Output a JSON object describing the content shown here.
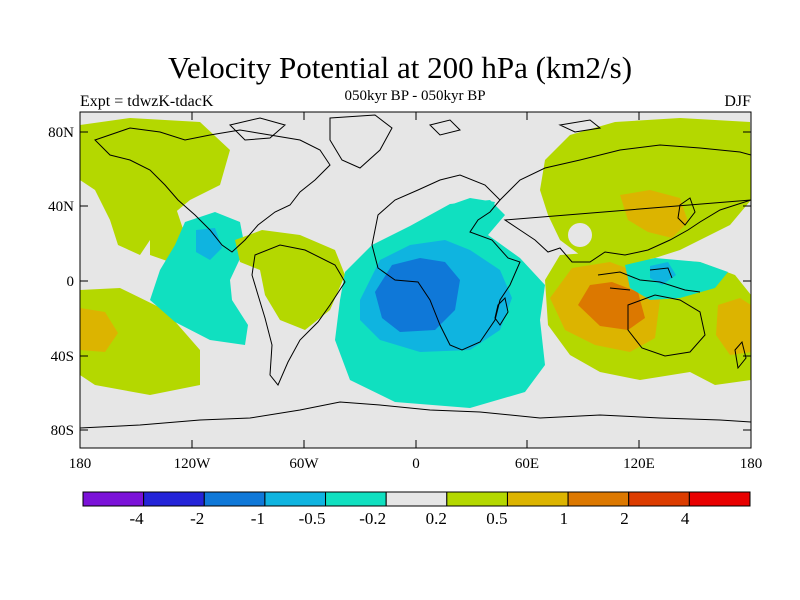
{
  "title": "Velocity Potential at 200 hPa (km2/s)",
  "subtitle": "050kyr BP - 050kyr BP",
  "left_label": "Expt = tdwzK-tdacK",
  "right_label": "DJF",
  "map": {
    "projection": "cylindrical equidistant",
    "lon_range": [
      -180,
      180
    ],
    "lat_range": [
      -90,
      90
    ],
    "background_color": "#e6e6e6",
    "y_ticks": [
      "80N",
      "40N",
      "0",
      "40S",
      "80S"
    ],
    "x_ticks": [
      "180",
      "120W",
      "60W",
      "0",
      "60E",
      "120E",
      "180"
    ]
  },
  "colorbar": {
    "colors": [
      "#7b12d8",
      "#2424d8",
      "#0f78d8",
      "#0fb4e0",
      "#10e0c0",
      "#e6e6e6",
      "#b4d800",
      "#dcb400",
      "#dc7800",
      "#dc3c00",
      "#e80000"
    ],
    "labels": [
      "-4",
      "-2",
      "-1",
      "-0.5",
      "-0.2",
      "0.2",
      "0.5",
      "1",
      "2",
      "4"
    ]
  },
  "contours": {
    "levels": [
      -4,
      -2,
      -1,
      -0.5,
      -0.2,
      0.2,
      0.5,
      1,
      2,
      4
    ],
    "regions": [
      {
        "name": "north-pacific-positive",
        "value_range": [
          0.2,
          0.5
        ],
        "color": "#b4d800"
      },
      {
        "name": "central-pacific-warm",
        "value_range": [
          0.5,
          1
        ],
        "color": "#dcb400"
      },
      {
        "name": "east-pacific-negative",
        "value_range": [
          -0.5,
          -0.2
        ],
        "color": "#10e0c0"
      },
      {
        "name": "south-america-positive",
        "value_range": [
          0.2,
          0.5
        ],
        "color": "#b4d800"
      },
      {
        "name": "atlantic-africa-negative",
        "value_range": [
          -0.5,
          -0.2
        ],
        "color": "#10e0c0"
      },
      {
        "name": "africa-core-negative",
        "value_range": [
          -2,
          -1
        ],
        "color": "#0f78d8"
      },
      {
        "name": "asia-positive",
        "value_range": [
          0.2,
          0.5
        ],
        "color": "#b4d800"
      },
      {
        "name": "east-asia-warm",
        "value_range": [
          0.5,
          1
        ],
        "color": "#dcb400"
      },
      {
        "name": "indian-ocean-warm",
        "value_range": [
          0.5,
          1
        ],
        "color": "#dcb400"
      },
      {
        "name": "indonesia-core",
        "value_range": [
          1,
          2
        ],
        "color": "#dc7800"
      },
      {
        "name": "maritime-continent-negative",
        "value_range": [
          -0.5,
          -0.2
        ],
        "color": "#10e0c0"
      }
    ]
  }
}
